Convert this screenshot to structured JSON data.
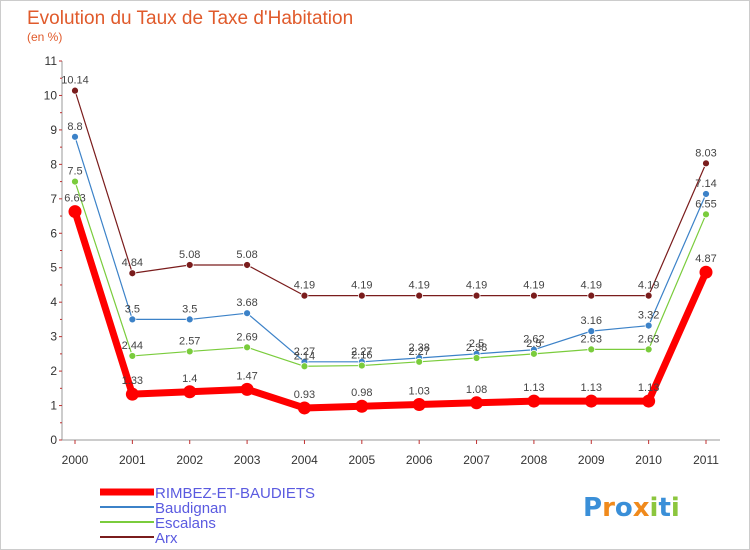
{
  "chart_data": {
    "type": "line",
    "title": "Evolution du Taux de Taxe d'Habitation",
    "subtitle": "(en %)",
    "x": [
      "2000",
      "2001",
      "2002",
      "2003",
      "2004",
      "2005",
      "2006",
      "2007",
      "2008",
      "2009",
      "2010",
      "2011"
    ],
    "ylim": [
      0,
      11
    ],
    "y_ticks": [
      "0",
      "1",
      "2",
      "3",
      "4",
      "5",
      "6",
      "7",
      "8",
      "9",
      "10",
      "11"
    ],
    "grid": false,
    "legend_position": "bottom-left",
    "series": [
      {
        "name": "Arx",
        "color": "#7a1c1c",
        "values": [
          10.14,
          4.84,
          5.08,
          5.08,
          4.19,
          4.19,
          4.19,
          4.19,
          4.19,
          4.19,
          4.19,
          8.03
        ],
        "labels": [
          "10.14",
          "4.84",
          "5.08",
          "5.08",
          "4.19",
          "4.19",
          "4.19",
          "4.19",
          "4.19",
          "4.19",
          "4.19",
          "8.03"
        ]
      },
      {
        "name": "Baudignan",
        "color": "#3c82c8",
        "values": [
          8.8,
          3.5,
          3.5,
          3.68,
          2.27,
          2.27,
          2.38,
          2.5,
          2.62,
          3.16,
          3.32,
          7.14
        ],
        "labels": [
          "8.8",
          "3.5",
          "3.5",
          "3.68",
          "2.27",
          "2.27",
          "2.38",
          "2.5",
          "2.62",
          "3.16",
          "3.32",
          "7.14"
        ]
      },
      {
        "name": "Escalans",
        "color": "#7acc3c",
        "values": [
          7.5,
          2.44,
          2.57,
          2.69,
          2.14,
          2.16,
          2.27,
          2.38,
          2.5,
          2.63,
          2.63,
          6.55
        ],
        "labels": [
          "7.5",
          "2.44",
          "2.57",
          "2.69",
          "2.14",
          "2.16",
          "2.27",
          "2.38",
          "2.5",
          "2.63",
          "2.63",
          "6.55"
        ]
      },
      {
        "name": "RIMBEZ-ET-BAUDIETS",
        "color": "#ff0000",
        "values": [
          6.63,
          1.33,
          1.4,
          1.47,
          0.93,
          0.98,
          1.03,
          1.08,
          1.13,
          1.13,
          1.13,
          4.87
        ],
        "labels": [
          "6.63",
          "1.33",
          "1.4",
          "1.47",
          "0.93",
          "0.98",
          "1.03",
          "1.08",
          "1.13",
          "1.13",
          "1.13",
          "4.87"
        ]
      }
    ],
    "legend": [
      "RIMBEZ-ET-BAUDIETS",
      "Baudignan",
      "Escalans",
      "Arx"
    ]
  },
  "logo": {
    "text": "Proxiti",
    "colors": [
      "#3a8fd8",
      "#f08a1c",
      "#3a8fd8",
      "#f08a1c",
      "#8cc63e",
      "#3a8fd8",
      "#8cc63e"
    ]
  }
}
